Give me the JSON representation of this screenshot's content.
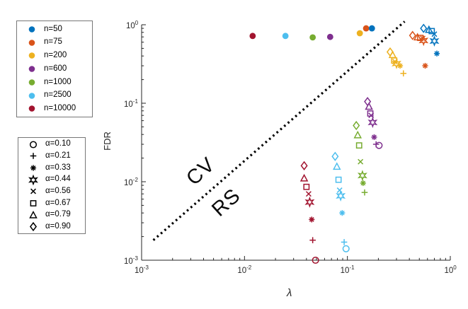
{
  "figure": {
    "x_axis_label": "λ",
    "y_axis_label": "FDR",
    "annotation_above_line": "CV",
    "annotation_below_line": "RS"
  },
  "chart_data": {
    "type": "scatter",
    "title": "",
    "xlabel": "λ",
    "ylabel": "FDR",
    "xscale": "log",
    "yscale": "log",
    "xlim": [
      0.001,
      1
    ],
    "ylim": [
      0.001,
      1
    ],
    "grid": false,
    "x_tick_exponents": [
      -3,
      -2,
      -1,
      0
    ],
    "y_tick_exponents": [
      -3,
      -2,
      -1,
      0
    ],
    "color_legend": {
      "position": "outside-upper-left",
      "entries": [
        {
          "label": "n=50",
          "color": "#0072BD"
        },
        {
          "label": "n=75",
          "color": "#D95319"
        },
        {
          "label": "n=200",
          "color": "#EDB120"
        },
        {
          "label": "n=600",
          "color": "#7E2F8E"
        },
        {
          "label": "n=1000",
          "color": "#77AC30"
        },
        {
          "label": "n=2500",
          "color": "#4DBEEE"
        },
        {
          "label": "n=10000",
          "color": "#A2142F"
        }
      ]
    },
    "marker_legend": {
      "position": "outside-lower-left",
      "entries": [
        {
          "label": "α=0.10",
          "marker": "circle"
        },
        {
          "label": "α=0.21",
          "marker": "plus"
        },
        {
          "label": "α=0.33",
          "marker": "asterisk"
        },
        {
          "label": "α=0.44",
          "marker": "hexagram"
        },
        {
          "label": "α=0.56",
          "marker": "x"
        },
        {
          "label": "α=0.67",
          "marker": "square"
        },
        {
          "label": "α=0.79",
          "marker": "triangle"
        },
        {
          "label": "α=0.90",
          "marker": "diamond"
        }
      ]
    },
    "diagonal_line": {
      "style": "dotted",
      "color": "#000000",
      "from": [
        0.0013,
        0.0018
      ],
      "to": [
        0.36,
        1.1
      ]
    },
    "annotations": [
      {
        "text": "CV",
        "x": 0.0038,
        "y": 0.0134,
        "rotation_deg": -42
      },
      {
        "text": "RS",
        "x": 0.0067,
        "y": 0.0054,
        "rotation_deg": -42
      }
    ],
    "cv_points": [
      {
        "n": 10000,
        "color": "#A2142F",
        "lambda": 0.012,
        "fdr": 0.72
      },
      {
        "n": 2500,
        "color": "#4DBEEE",
        "lambda": 0.025,
        "fdr": 0.72
      },
      {
        "n": 1000,
        "color": "#77AC30",
        "lambda": 0.046,
        "fdr": 0.69
      },
      {
        "n": 600,
        "color": "#7E2F8E",
        "lambda": 0.068,
        "fdr": 0.7
      },
      {
        "n": 200,
        "color": "#EDB120",
        "lambda": 0.132,
        "fdr": 0.78
      },
      {
        "n": 75,
        "color": "#D95319",
        "lambda": 0.152,
        "fdr": 0.9
      },
      {
        "n": 50,
        "color": "#0072BD",
        "lambda": 0.173,
        "fdr": 0.9
      }
    ],
    "rs_series": [
      {
        "n": 50,
        "color": "#0072BD",
        "points": [
          {
            "alpha": 0.9,
            "marker": "diamond",
            "lambda": 0.55,
            "fdr": 0.9
          },
          {
            "alpha": 0.79,
            "marker": "triangle",
            "lambda": 0.62,
            "fdr": 0.86
          },
          {
            "alpha": 0.67,
            "marker": "square",
            "lambda": 0.66,
            "fdr": 0.83
          },
          {
            "alpha": 0.56,
            "marker": "x",
            "lambda": 0.7,
            "fdr": 0.76
          },
          {
            "alpha": 0.44,
            "marker": "hexagram",
            "lambda": 0.7,
            "fdr": 0.62
          },
          {
            "alpha": 0.33,
            "marker": "asterisk",
            "lambda": 0.74,
            "fdr": 0.43
          }
        ]
      },
      {
        "n": 75,
        "color": "#D95319",
        "points": [
          {
            "alpha": 0.9,
            "marker": "diamond",
            "lambda": 0.43,
            "fdr": 0.73
          },
          {
            "alpha": 0.79,
            "marker": "triangle",
            "lambda": 0.48,
            "fdr": 0.69
          },
          {
            "alpha": 0.67,
            "marker": "square",
            "lambda": 0.51,
            "fdr": 0.68
          },
          {
            "alpha": 0.56,
            "marker": "x",
            "lambda": 0.54,
            "fdr": 0.67
          },
          {
            "alpha": 0.44,
            "marker": "hexagram",
            "lambda": 0.55,
            "fdr": 0.63
          },
          {
            "alpha": 0.33,
            "marker": "asterisk",
            "lambda": 0.57,
            "fdr": 0.3
          }
        ]
      },
      {
        "n": 200,
        "color": "#EDB120",
        "points": [
          {
            "alpha": 0.9,
            "marker": "diamond",
            "lambda": 0.26,
            "fdr": 0.45
          },
          {
            "alpha": 0.79,
            "marker": "triangle",
            "lambda": 0.275,
            "fdr": 0.41
          },
          {
            "alpha": 0.67,
            "marker": "square",
            "lambda": 0.285,
            "fdr": 0.35
          },
          {
            "alpha": 0.56,
            "marker": "x",
            "lambda": 0.29,
            "fdr": 0.34
          },
          {
            "alpha": 0.44,
            "marker": "hexagram",
            "lambda": 0.3,
            "fdr": 0.32
          },
          {
            "alpha": 0.33,
            "marker": "asterisk",
            "lambda": 0.325,
            "fdr": 0.3
          },
          {
            "alpha": 0.21,
            "marker": "plus",
            "lambda": 0.35,
            "fdr": 0.24
          }
        ]
      },
      {
        "n": 600,
        "color": "#7E2F8E",
        "points": [
          {
            "alpha": 0.9,
            "marker": "diamond",
            "lambda": 0.157,
            "fdr": 0.105
          },
          {
            "alpha": 0.79,
            "marker": "triangle",
            "lambda": 0.162,
            "fdr": 0.09
          },
          {
            "alpha": 0.67,
            "marker": "square",
            "lambda": 0.167,
            "fdr": 0.074
          },
          {
            "alpha": 0.56,
            "marker": "x",
            "lambda": 0.17,
            "fdr": 0.07
          },
          {
            "alpha": 0.44,
            "marker": "hexagram",
            "lambda": 0.176,
            "fdr": 0.057
          },
          {
            "alpha": 0.33,
            "marker": "asterisk",
            "lambda": 0.182,
            "fdr": 0.037
          },
          {
            "alpha": 0.21,
            "marker": "plus",
            "lambda": 0.19,
            "fdr": 0.03
          },
          {
            "alpha": 0.1,
            "marker": "circle",
            "lambda": 0.203,
            "fdr": 0.029
          }
        ]
      },
      {
        "n": 1000,
        "color": "#77AC30",
        "points": [
          {
            "alpha": 0.9,
            "marker": "diamond",
            "lambda": 0.122,
            "fdr": 0.052
          },
          {
            "alpha": 0.79,
            "marker": "triangle",
            "lambda": 0.126,
            "fdr": 0.039
          },
          {
            "alpha": 0.67,
            "marker": "square",
            "lambda": 0.13,
            "fdr": 0.029
          },
          {
            "alpha": 0.56,
            "marker": "x",
            "lambda": 0.134,
            "fdr": 0.018
          },
          {
            "alpha": 0.44,
            "marker": "hexagram",
            "lambda": 0.14,
            "fdr": 0.012
          },
          {
            "alpha": 0.33,
            "marker": "asterisk",
            "lambda": 0.142,
            "fdr": 0.0096
          },
          {
            "alpha": 0.21,
            "marker": "plus",
            "lambda": 0.147,
            "fdr": 0.0073
          }
        ]
      },
      {
        "n": 2500,
        "color": "#4DBEEE",
        "points": [
          {
            "alpha": 0.9,
            "marker": "diamond",
            "lambda": 0.076,
            "fdr": 0.021
          },
          {
            "alpha": 0.79,
            "marker": "triangle",
            "lambda": 0.079,
            "fdr": 0.0155
          },
          {
            "alpha": 0.67,
            "marker": "square",
            "lambda": 0.082,
            "fdr": 0.0106
          },
          {
            "alpha": 0.56,
            "marker": "x",
            "lambda": 0.084,
            "fdr": 0.0078
          },
          {
            "alpha": 0.44,
            "marker": "hexagram",
            "lambda": 0.086,
            "fdr": 0.0066
          },
          {
            "alpha": 0.33,
            "marker": "asterisk",
            "lambda": 0.089,
            "fdr": 0.004
          },
          {
            "alpha": 0.21,
            "marker": "plus",
            "lambda": 0.093,
            "fdr": 0.0017
          },
          {
            "alpha": 0.1,
            "marker": "circle",
            "lambda": 0.097,
            "fdr": 0.0014
          }
        ]
      },
      {
        "n": 10000,
        "color": "#A2142F",
        "points": [
          {
            "alpha": 0.9,
            "marker": "diamond",
            "lambda": 0.038,
            "fdr": 0.016
          },
          {
            "alpha": 0.79,
            "marker": "triangle",
            "lambda": 0.038,
            "fdr": 0.011
          },
          {
            "alpha": 0.67,
            "marker": "square",
            "lambda": 0.04,
            "fdr": 0.0086
          },
          {
            "alpha": 0.56,
            "marker": "x",
            "lambda": 0.042,
            "fdr": 0.007
          },
          {
            "alpha": 0.44,
            "marker": "hexagram",
            "lambda": 0.043,
            "fdr": 0.0055
          },
          {
            "alpha": 0.33,
            "marker": "asterisk",
            "lambda": 0.045,
            "fdr": 0.0033
          },
          {
            "alpha": 0.21,
            "marker": "plus",
            "lambda": 0.046,
            "fdr": 0.0018
          },
          {
            "alpha": 0.1,
            "marker": "circle",
            "lambda": 0.049,
            "fdr": 0.001
          }
        ]
      }
    ]
  }
}
